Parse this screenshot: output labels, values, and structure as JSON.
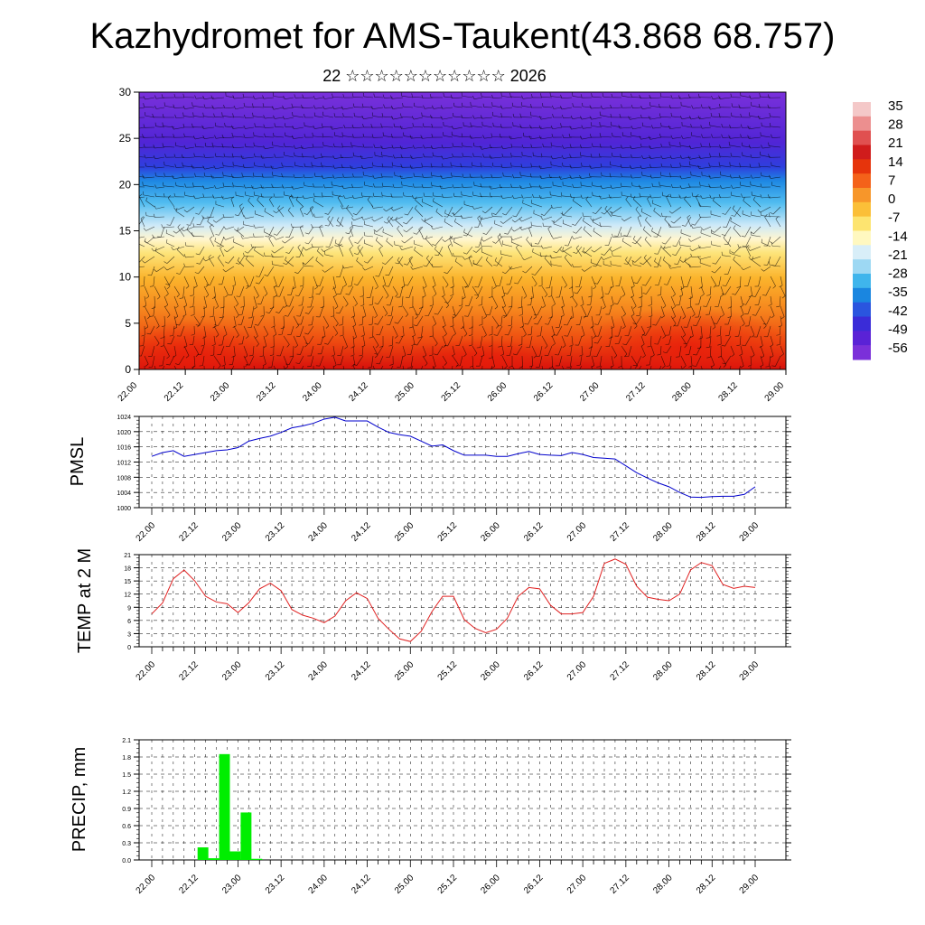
{
  "title": "Kazhydromet for AMS-Taukent(43.868 68.757)",
  "subtitle": "22 ☆☆☆☆☆☆☆☆☆☆☆ 2026",
  "x_ticks": [
    "22.00",
    "22.12",
    "23.00",
    "23.12",
    "24.00",
    "24.12",
    "25.00",
    "25.12",
    "26.00",
    "26.12",
    "27.00",
    "27.12",
    "28.00",
    "28.12",
    "29.00"
  ],
  "colorbar": {
    "labels": [
      "35",
      "28",
      "21",
      "14",
      "7",
      "0",
      "-7",
      "-14",
      "-21",
      "-28",
      "-35",
      "-42",
      "-49",
      "-56"
    ],
    "colors": [
      "#f4c8c8",
      "#ec8f8f",
      "#e05050",
      "#d01c1c",
      "#e6340c",
      "#f4621a",
      "#f7962a",
      "#fbbf38",
      "#fde470",
      "#fff8c0",
      "#d8eef8",
      "#9dd8f3",
      "#3fb5ec",
      "#1a86e0",
      "#2a55df",
      "#3a2cd8",
      "#5a22d6",
      "#7b30d9"
    ]
  },
  "chart_data": [
    {
      "type": "heatmap",
      "title": "",
      "xlabel": "",
      "ylabel": "",
      "ylim": [
        0,
        30
      ],
      "y_ticks": [
        "0",
        "5",
        "10",
        "15",
        "20",
        "25",
        "30"
      ],
      "x_categories": [
        "22.00",
        "22.12",
        "23.00",
        "23.12",
        "24.00",
        "24.12",
        "25.00",
        "25.12",
        "26.00",
        "26.12",
        "27.00",
        "27.12",
        "28.00",
        "28.12",
        "29.00"
      ],
      "description_values": "temperature vs level with wind barbs",
      "temperature_scale": [
        -56,
        35
      ]
    },
    {
      "type": "line",
      "ylabel": "PMSL",
      "ylim": [
        1000,
        1024
      ],
      "y_ticks": [
        "1000",
        "1004",
        "1008",
        "1012",
        "1016",
        "1020",
        "1024"
      ],
      "x": [
        0,
        3,
        6,
        9,
        12,
        15,
        18,
        21,
        24,
        27,
        30,
        33,
        36,
        39,
        42,
        45,
        48,
        51,
        54,
        57,
        60,
        63,
        66,
        69,
        72,
        75,
        78,
        81,
        84,
        87,
        90,
        93,
        96,
        99,
        102,
        105,
        108,
        111,
        114,
        117,
        120,
        123,
        126,
        129,
        132,
        135,
        138,
        141,
        144,
        147,
        150,
        153,
        156,
        159,
        162,
        165,
        168
      ],
      "series": [
        {
          "color": "#0000cc",
          "values": [
            1013.5,
            1014.5,
            1015,
            1013.5,
            1014,
            1014.5,
            1015,
            1015.2,
            1015.8,
            1017.5,
            1018.2,
            1018.8,
            1019.8,
            1021,
            1021.5,
            1022.2,
            1023.3,
            1023.8,
            1022.8,
            1022.8,
            1022.8,
            1021.2,
            1019.8,
            1019.2,
            1018.8,
            1017.5,
            1016.2,
            1016.5,
            1015,
            1013.8,
            1013.8,
            1013.8,
            1013.5,
            1013.5,
            1014.2,
            1014.8,
            1014,
            1013.8,
            1013.7,
            1014.5,
            1014,
            1013.2,
            1013,
            1012.8,
            1011,
            1009.2,
            1007.8,
            1006.5,
            1005.5,
            1004,
            1002.8,
            1002.7,
            1002.9,
            1003,
            1003,
            1003.5,
            1005.5
          ]
        }
      ]
    },
    {
      "type": "line",
      "ylabel": "TEMP at 2 M",
      "ylim": [
        0,
        21
      ],
      "y_ticks": [
        "0",
        "3",
        "6",
        "9",
        "12",
        "15",
        "18",
        "21"
      ],
      "x": [
        0,
        3,
        6,
        9,
        12,
        15,
        18,
        21,
        24,
        27,
        30,
        33,
        36,
        39,
        42,
        45,
        48,
        51,
        54,
        57,
        60,
        63,
        66,
        69,
        72,
        75,
        78,
        81,
        84,
        87,
        90,
        93,
        96,
        99,
        102,
        105,
        108,
        111,
        114,
        117,
        120,
        123,
        126,
        129,
        132,
        135,
        138,
        141,
        144,
        147,
        150,
        153,
        156,
        159,
        162,
        165,
        168
      ],
      "series": [
        {
          "color": "#e02020",
          "values": [
            7.5,
            10,
            15.5,
            17.5,
            15,
            11.5,
            10.2,
            9.8,
            7.8,
            10,
            13.2,
            14.5,
            12.8,
            8.5,
            7.2,
            6.5,
            5.5,
            7,
            10.5,
            12.3,
            11,
            6.5,
            4,
            1.8,
            1.2,
            3.5,
            8,
            11.5,
            11.5,
            6.2,
            4.2,
            3.2,
            4,
            6.5,
            11.5,
            13.5,
            13.2,
            9.5,
            7.5,
            7.5,
            7.8,
            11.5,
            19,
            20,
            18.8,
            13.8,
            11.3,
            10.8,
            10.5,
            12,
            17.5,
            19.2,
            18.5,
            14.2,
            13.3,
            13.8,
            13.5
          ]
        }
      ]
    },
    {
      "type": "bar",
      "ylabel": "PRECIP, mm",
      "ylim": [
        0,
        2.1
      ],
      "y_ticks": [
        "0.0",
        "0.3",
        "0.6",
        "0.9",
        "1.2",
        "1.5",
        "1.8",
        "2.1"
      ],
      "bar_color": "#00ee00",
      "x": [
        12,
        15,
        18,
        21,
        24,
        27
      ],
      "values": [
        0.22,
        0.03,
        1.85,
        0.15,
        0.83,
        0.02
      ]
    }
  ]
}
